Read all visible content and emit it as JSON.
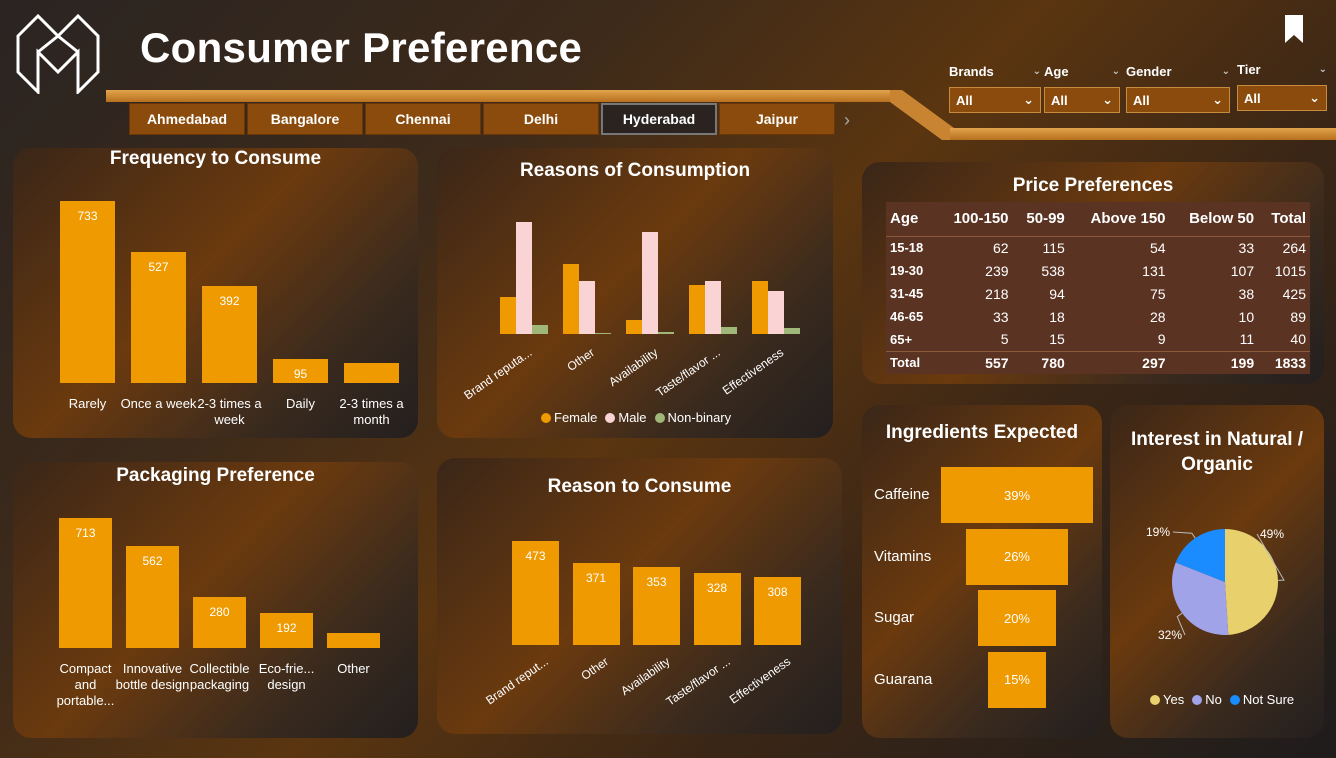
{
  "header": {
    "title": "Consumer Preference",
    "logo_icon": "m-logo-icon",
    "bookmark_icon": "bookmark-icon"
  },
  "cities": [
    "Ahmedabad",
    "Bangalore",
    "Chennai",
    "Delhi",
    "Hyderabad",
    "Jaipur"
  ],
  "active_city": "Hyderabad",
  "filters": [
    {
      "label": "Brands",
      "value": "All"
    },
    {
      "label": "Age",
      "value": "All"
    },
    {
      "label": "Gender",
      "value": "All"
    },
    {
      "label": "Tier",
      "value": "All"
    }
  ],
  "colors": {
    "bar": "#ee9a00",
    "female": "#ee9a00",
    "male": "#fad4d4",
    "nonbinary": "#9fb87a",
    "yes": "#e8d16c",
    "no": "#a0a3e8",
    "not_sure": "#1a8cff"
  },
  "frequency": {
    "title": "Frequency to Consume",
    "chart_data": {
      "type": "bar",
      "categories": [
        "Rarely",
        "Once a week",
        "2-3 times a week",
        "Daily",
        "2-3 times a month"
      ],
      "values": [
        733,
        527,
        392,
        95,
        0
      ],
      "value_labels": [
        "733",
        "527",
        "392",
        "95",
        ""
      ]
    }
  },
  "reasons_consumption": {
    "title": "Reasons of Consumption",
    "legend": [
      "Female",
      "Male",
      "Non-binary"
    ],
    "chart_data": {
      "type": "bar",
      "categories": [
        "Brand reputa...",
        "Other",
        "Availability",
        "Taste/flavor ...",
        "Effectiveness"
      ],
      "series": [
        {
          "name": "Female",
          "values": [
            37,
            70,
            14,
            49,
            53
          ]
        },
        {
          "name": "Male",
          "values": [
            112,
            53,
            102,
            53,
            43
          ]
        },
        {
          "name": "Non-binary",
          "values": [
            9,
            1,
            2,
            7,
            6
          ]
        }
      ]
    }
  },
  "price": {
    "title": "Price Preferences",
    "columns": [
      "Age",
      "100-150",
      "50-99",
      "Above 150",
      "Below 50",
      "Total"
    ],
    "rows": [
      [
        "15-18",
        "62",
        "115",
        "54",
        "33",
        "264"
      ],
      [
        "19-30",
        "239",
        "538",
        "131",
        "107",
        "1015"
      ],
      [
        "31-45",
        "218",
        "94",
        "75",
        "38",
        "425"
      ],
      [
        "46-65",
        "33",
        "18",
        "28",
        "10",
        "89"
      ],
      [
        "65+",
        "5",
        "15",
        "9",
        "11",
        "40"
      ],
      [
        "Total",
        "557",
        "780",
        "297",
        "199",
        "1833"
      ]
    ]
  },
  "packaging": {
    "title": "Packaging Preference",
    "chart_data": {
      "type": "bar",
      "categories": [
        "Compact and portable...",
        "Innovative bottle design",
        "Collectible packaging",
        "Eco-frie... design",
        "Other"
      ],
      "values": [
        713,
        562,
        280,
        192,
        0
      ],
      "value_labels": [
        "713",
        "562",
        "280",
        "192",
        ""
      ]
    }
  },
  "reason_to_consume": {
    "title": "Reason to Consume",
    "chart_data": {
      "type": "bar",
      "categories": [
        "Brand reput...",
        "Other",
        "Availability",
        "Taste/flavor ...",
        "Effectiveness"
      ],
      "values": [
        473,
        371,
        353,
        328,
        308
      ]
    }
  },
  "ingredients": {
    "title": "Ingredients Expected",
    "chart_data": {
      "type": "bar",
      "categories": [
        "Caffeine",
        "Vitamins",
        "Sugar",
        "Guarana"
      ],
      "values": [
        39,
        26,
        20,
        15
      ],
      "value_labels": [
        "39%",
        "26%",
        "20%",
        "15%"
      ]
    }
  },
  "natural": {
    "title": "Interest in Natural / Organic",
    "legend": [
      "Yes",
      "No",
      "Not Sure"
    ],
    "chart_data": {
      "type": "pie",
      "categories": [
        "Yes",
        "No",
        "Not Sure"
      ],
      "values": [
        49,
        32,
        19
      ],
      "value_labels": [
        "49%",
        "32%",
        "19%"
      ]
    }
  }
}
